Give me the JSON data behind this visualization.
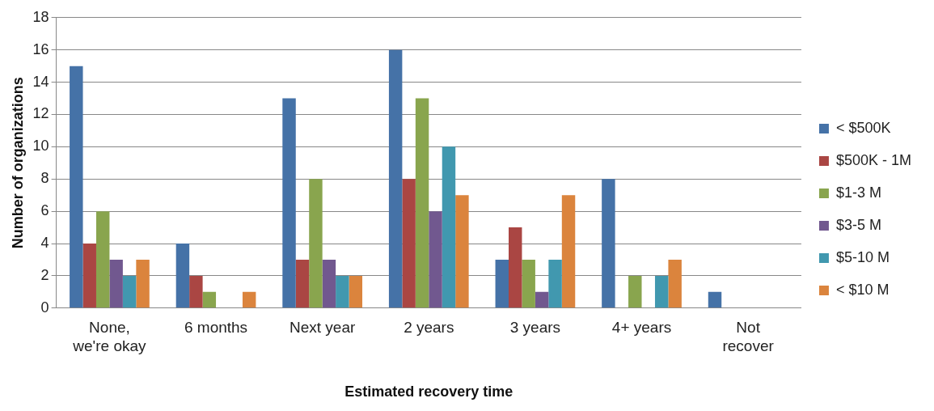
{
  "chart_data": {
    "type": "bar",
    "xlabel": "Estimated recovery time",
    "ylabel": "Number of organizations",
    "categories": [
      "None, we're okay",
      "6 months",
      "Next year",
      "2 years",
      "3 years",
      "4+ years",
      "Not recover"
    ],
    "series": [
      {
        "name": "< $500K",
        "color": "#4572a7",
        "values": [
          15,
          4,
          13,
          16,
          3,
          8,
          1
        ]
      },
      {
        "name": "$500K - 1M",
        "color": "#aa4643",
        "values": [
          4,
          2,
          3,
          8,
          5,
          0,
          0
        ]
      },
      {
        "name": "$1-3 M",
        "color": "#89a54e",
        "values": [
          6,
          1,
          8,
          13,
          3,
          2,
          0
        ]
      },
      {
        "name": "$3-5 M",
        "color": "#71588f",
        "values": [
          3,
          0,
          3,
          6,
          1,
          0,
          0
        ]
      },
      {
        "name": "$5-10 M",
        "color": "#4198af",
        "values": [
          2,
          0,
          2,
          10,
          3,
          2,
          0
        ]
      },
      {
        "name": "< $10 M",
        "color": "#db843d",
        "values": [
          3,
          1,
          2,
          7,
          7,
          3,
          0
        ]
      }
    ],
    "ylim": [
      0,
      18
    ],
    "yticks": [
      0,
      2,
      4,
      6,
      8,
      10,
      12,
      14,
      16,
      18
    ],
    "grid": "y",
    "legend": "right"
  }
}
